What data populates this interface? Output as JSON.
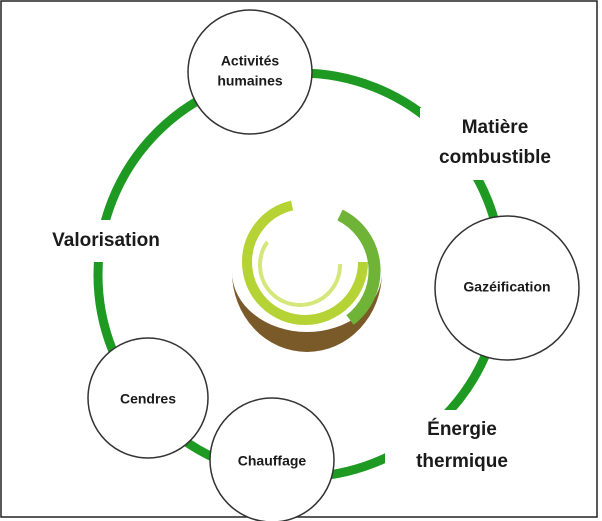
{
  "nodes": [
    {
      "label": [
        "Activités",
        "humaines"
      ]
    },
    {
      "label": [
        "Gazéification"
      ]
    },
    {
      "label": [
        "Chauffage"
      ]
    },
    {
      "label": [
        "Cendres"
      ]
    }
  ],
  "stages": [
    {
      "label": [
        "Matière",
        "combustible"
      ]
    },
    {
      "label": [
        "Énergie",
        "thermique"
      ]
    },
    {
      "label": [
        "Valorisation"
      ]
    }
  ]
}
